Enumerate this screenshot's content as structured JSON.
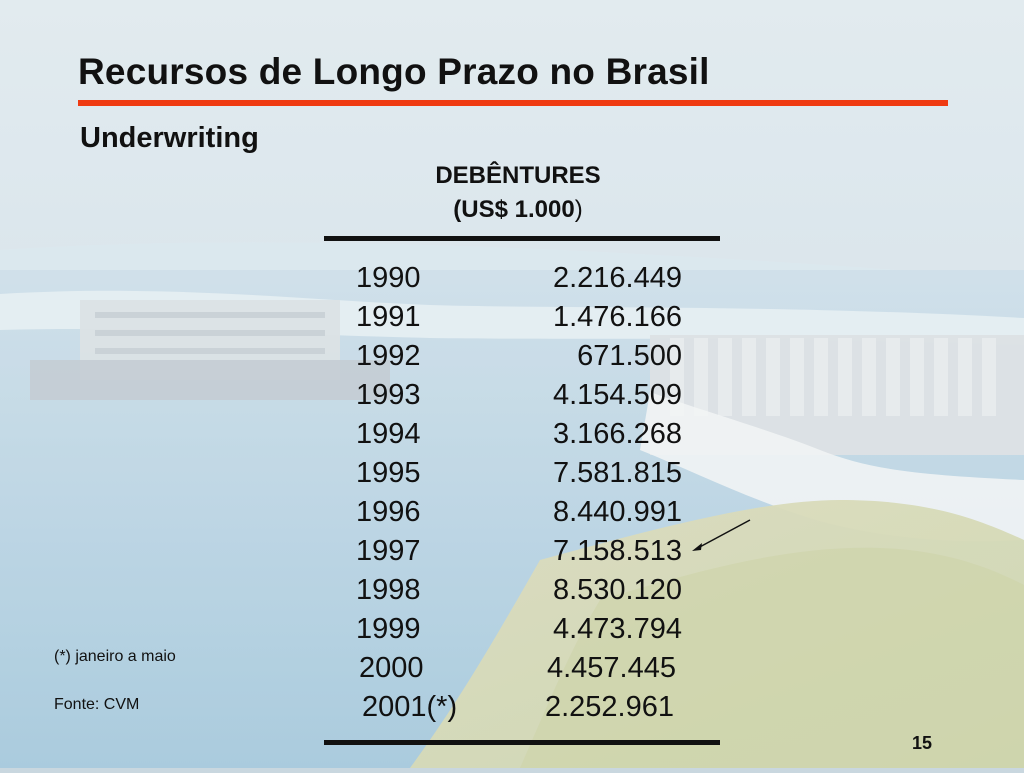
{
  "slide": {
    "title": "Recursos de Longo Prazo no Brasil",
    "subtitle": "Underwriting",
    "page_number": "15",
    "accent_color": "#ef3b12"
  },
  "table": {
    "heading": "DEBÊNTURES",
    "unit_label": "(US$ 1.000",
    "unit_close": ")",
    "rows": [
      {
        "year": "1990",
        "value": "2.216.449"
      },
      {
        "year": "1991",
        "value": "1.476.166"
      },
      {
        "year": "1992",
        "value": "671.500"
      },
      {
        "year": "1993",
        "value": "4.154.509"
      },
      {
        "year": "1994",
        "value": "3.166.268"
      },
      {
        "year": "1995",
        "value": "7.581.815"
      },
      {
        "year": "1996",
        "value": "8.440.991"
      },
      {
        "year": "1997",
        "value": "7.158.513"
      },
      {
        "year": "1998",
        "value": "8.530.120"
      },
      {
        "year": "1999",
        "value": "4.473.794"
      },
      {
        "year": "2000",
        "value": "4.457.445"
      },
      {
        "year": "2001(*)",
        "value": "2.252.961"
      }
    ]
  },
  "footnotes": {
    "note": "(*) janeiro a maio",
    "source": "Fonte: CVM"
  },
  "annotation": {
    "arrow_target_year": "1997"
  },
  "background": {
    "scene": "dam-and-spillway-photo"
  }
}
